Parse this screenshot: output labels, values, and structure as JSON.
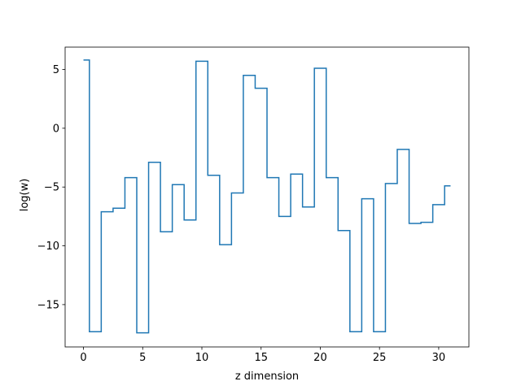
{
  "chart_data": {
    "type": "line",
    "drawstyle": "steps-mid",
    "title": "",
    "xlabel": "z dimension",
    "ylabel": "log(w)",
    "xlim": [
      -1.55,
      32.55
    ],
    "ylim": [
      -18.6,
      6.9
    ],
    "xticks": [
      0,
      5,
      10,
      15,
      20,
      25,
      30
    ],
    "yticks": [
      5,
      0,
      -5,
      -10,
      -15
    ],
    "ytick_labels": [
      "5",
      "0",
      "−5",
      "−10",
      "−15"
    ],
    "grid": false,
    "legend": null,
    "series": [
      {
        "color": "#1f77b4",
        "x": [
          0,
          1,
          2,
          3,
          4,
          5,
          6,
          7,
          8,
          9,
          10,
          11,
          12,
          13,
          14,
          15,
          16,
          17,
          18,
          19,
          20,
          21,
          22,
          23,
          24,
          25,
          26,
          27,
          28,
          29,
          30,
          31
        ],
        "y": [
          5.8,
          -17.3,
          -7.1,
          -6.8,
          -4.2,
          -17.4,
          -2.9,
          -8.8,
          -4.8,
          -7.8,
          5.7,
          -4.0,
          -9.9,
          -5.5,
          4.5,
          3.4,
          -4.2,
          -7.5,
          -3.9,
          -6.7,
          5.1,
          -4.2,
          -8.7,
          -17.3,
          -6.0,
          -17.3,
          -4.7,
          -1.8,
          -8.1,
          -8.0,
          -6.5,
          -4.9
        ]
      }
    ]
  }
}
